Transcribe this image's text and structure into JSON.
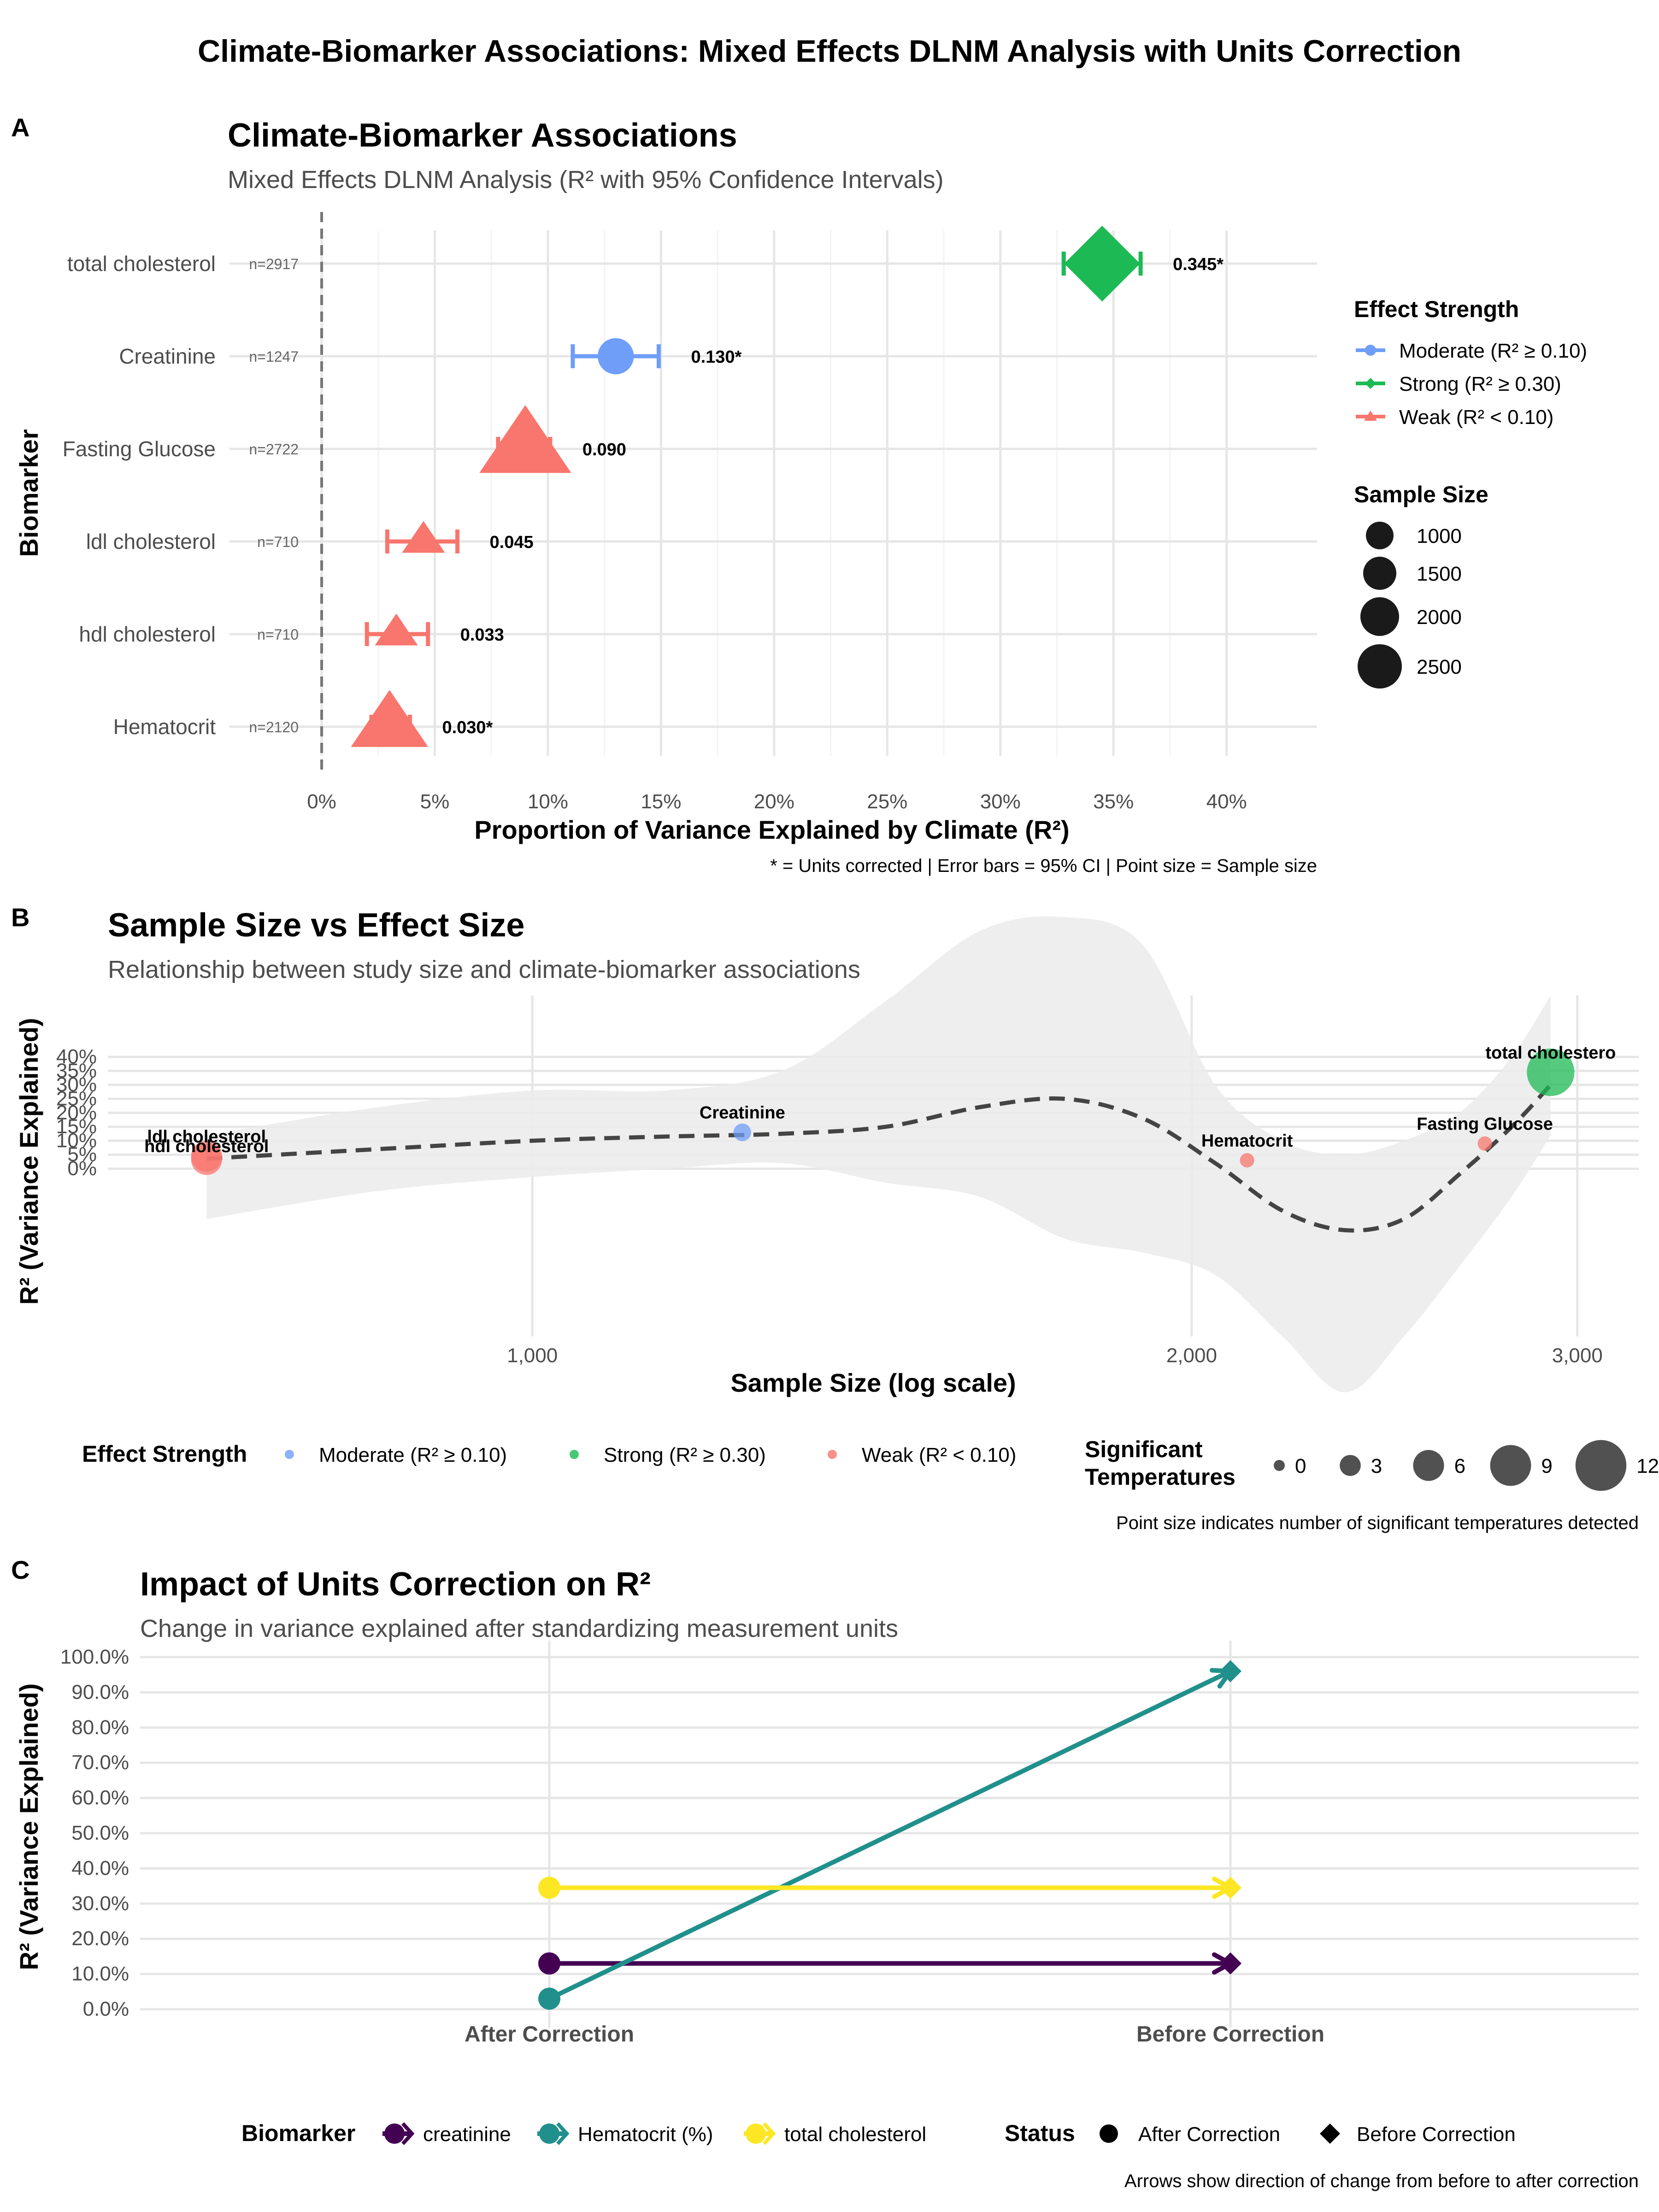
{
  "main_title": "Climate-Biomarker Associations: Mixed Effects DLNM Analysis with Units Correction",
  "colors": {
    "moderate": "#6f9ef8",
    "strong": "#1db954",
    "weak": "#f8766d",
    "creatinine": "#440154",
    "hematocrit": "#21908c",
    "total_cholesterol": "#fde725",
    "grid": "#e6e6e6",
    "ribbon": "#ebebeb",
    "text": "#000000",
    "muted": "#4d4d4d"
  },
  "panels": {
    "A": {
      "letter": "A"
    },
    "B": {
      "letter": "B"
    },
    "C": {
      "letter": "C"
    }
  },
  "chart_data": [
    {
      "type": "scatter",
      "title": "Climate-Biomarker Associations",
      "subtitle": "Mixed Effects DLNM Analysis (R² with 95% Confidence Intervals)",
      "xlabel": "Proportion of Variance Explained by Climate (R²)",
      "ylabel": "Biomarker",
      "caption": "* = Units corrected | Error bars = 95% CI | Point size = Sample size",
      "xlim": [
        0,
        0.44
      ],
      "x_ticks": [
        0,
        0.05,
        0.1,
        0.15,
        0.2,
        0.25,
        0.3,
        0.35,
        0.4
      ],
      "x_tick_labels": [
        "0%",
        "5%",
        "10%",
        "15%",
        "20%",
        "25%",
        "30%",
        "35%",
        "40%"
      ],
      "grid": true,
      "reference_line_x": 0,
      "legend_position": "right",
      "legend_strength_title": "Effect Strength",
      "legend_strength_items": [
        {
          "label": "Moderate (R² ≥ 0.10)",
          "key": "moderate",
          "shape": "circle"
        },
        {
          "label": "Strong (R² ≥ 0.30)",
          "key": "strong",
          "shape": "diamond"
        },
        {
          "label": "Weak (R² < 0.10)",
          "key": "weak",
          "shape": "triangle"
        }
      ],
      "legend_size_title": "Sample Size",
      "legend_size_items": [
        {
          "label": "1000",
          "n": 1000
        },
        {
          "label": "1500",
          "n": 1500
        },
        {
          "label": "2000",
          "n": 2000
        },
        {
          "label": "2500",
          "n": 2500
        }
      ],
      "rows": [
        {
          "name": "total cholesterol",
          "n_label": "n=2917",
          "n": 2917,
          "r2": 0.345,
          "ci": [
            0.328,
            0.362
          ],
          "label": "0.345*",
          "strength": "strong",
          "shape": "diamond"
        },
        {
          "name": "Creatinine",
          "n_label": "n=1247",
          "n": 1247,
          "r2": 0.13,
          "ci": [
            0.111,
            0.149
          ],
          "label": "0.130*",
          "strength": "moderate",
          "shape": "circle"
        },
        {
          "name": "Fasting Glucose",
          "n_label": "n=2722",
          "n": 2722,
          "r2": 0.09,
          "ci": [
            0.078,
            0.101
          ],
          "label": "0.090",
          "strength": "weak",
          "shape": "triangle"
        },
        {
          "name": "ldl cholesterol",
          "n_label": "n=710",
          "n": 710,
          "r2": 0.045,
          "ci": [
            0.029,
            0.06
          ],
          "label": "0.045",
          "strength": "weak",
          "shape": "triangle"
        },
        {
          "name": "hdl cholesterol",
          "n_label": "n=710",
          "n": 710,
          "r2": 0.033,
          "ci": [
            0.02,
            0.047
          ],
          "label": "0.033",
          "strength": "weak",
          "shape": "triangle"
        },
        {
          "name": "Hematocrit",
          "n_label": "n=2120",
          "n": 2120,
          "r2": 0.03,
          "ci": [
            0.022,
            0.039
          ],
          "label": "0.030*",
          "strength": "weak",
          "shape": "triangle"
        }
      ]
    },
    {
      "type": "scatter",
      "title": "Sample Size vs Effect Size",
      "subtitle": "Relationship between study size and climate-biomarker associations",
      "xlabel": "Sample Size (log scale)",
      "ylabel": "R² (Variance Explained)",
      "caption": "Point size indicates number of significant temperatures detected",
      "x_scale": "log",
      "xlim": [
        640,
        3200
      ],
      "x_ticks": [
        1000,
        2000,
        3000
      ],
      "x_tick_labels": [
        "1,000",
        "2,000",
        "3,000"
      ],
      "ylim": [
        -0.6,
        0.62
      ],
      "y_ticks": [
        0,
        0.05,
        0.1,
        0.15,
        0.2,
        0.25,
        0.3,
        0.35,
        0.4
      ],
      "y_tick_labels": [
        "0%",
        "5%",
        "10%",
        "15%",
        "20%",
        "25%",
        "30%",
        "35%",
        "40%"
      ],
      "grid": true,
      "legend_position": "bottom",
      "legend_strength_title": "Effect Strength",
      "legend_strength_items": [
        {
          "label": "Moderate (R² ≥ 0.10)",
          "key": "moderate"
        },
        {
          "label": "Strong (R² ≥ 0.30)",
          "key": "strong"
        },
        {
          "label": "Weak (R² < 0.10)",
          "key": "weak"
        }
      ],
      "legend_size_title": [
        "Significant",
        "Temperatures"
      ],
      "legend_size_items": [
        {
          "label": "0",
          "v": 0
        },
        {
          "label": "3",
          "v": 3
        },
        {
          "label": "6",
          "v": 6
        },
        {
          "label": "9",
          "v": 9
        },
        {
          "label": "12",
          "v": 12
        }
      ],
      "points": [
        {
          "name": "hdl cholesterol",
          "n": 710,
          "r2": 0.033,
          "strength": "weak",
          "sig": 6,
          "label_dy": -16
        },
        {
          "name": "ldl cholesterol",
          "n": 710,
          "r2": 0.045,
          "strength": "weak",
          "sig": 6,
          "label_dy": -30
        },
        {
          "name": "Creatinine",
          "n": 1247,
          "r2": 0.13,
          "strength": "moderate",
          "sig": 2,
          "label_dy": -30
        },
        {
          "name": "Hematocrit",
          "n": 2120,
          "r2": 0.03,
          "strength": "weak",
          "sig": 1,
          "label_dy": -30
        },
        {
          "name": "Fasting Glucose",
          "n": 2722,
          "r2": 0.09,
          "strength": "weak",
          "sig": 1,
          "label_dy": -30
        },
        {
          "name": "total cholestero",
          "n": 2917,
          "r2": 0.345,
          "strength": "strong",
          "sig": 11,
          "label_dy": -30
        }
      ],
      "smooth": [
        {
          "n": 710,
          "y": 0.036,
          "lo": -0.18,
          "hi": 0.12
        },
        {
          "n": 850,
          "y": 0.07,
          "lo": -0.08,
          "hi": 0.22
        },
        {
          "n": 1000,
          "y": 0.1,
          "lo": -0.03,
          "hi": 0.28
        },
        {
          "n": 1150,
          "y": 0.115,
          "lo": 0.0,
          "hi": 0.28
        },
        {
          "n": 1300,
          "y": 0.125,
          "lo": 0.02,
          "hi": 0.35
        },
        {
          "n": 1450,
          "y": 0.15,
          "lo": -0.05,
          "hi": 0.6
        },
        {
          "n": 1600,
          "y": 0.22,
          "lo": -0.1,
          "hi": 0.85
        },
        {
          "n": 1750,
          "y": 0.25,
          "lo": -0.25,
          "hi": 0.9
        },
        {
          "n": 1900,
          "y": 0.18,
          "lo": -0.3,
          "hi": 0.8
        },
        {
          "n": 2050,
          "y": 0.02,
          "lo": -0.38,
          "hi": 0.3
        },
        {
          "n": 2200,
          "y": -0.15,
          "lo": -0.6,
          "hi": 0.1
        },
        {
          "n": 2350,
          "y": -0.22,
          "lo": -0.8,
          "hi": 0.05
        },
        {
          "n": 2500,
          "y": -0.18,
          "lo": -0.6,
          "hi": 0.1
        },
        {
          "n": 2650,
          "y": -0.02,
          "lo": -0.35,
          "hi": 0.2
        },
        {
          "n": 2800,
          "y": 0.15,
          "lo": -0.1,
          "hi": 0.4
        },
        {
          "n": 2917,
          "y": 0.3,
          "lo": 0.12,
          "hi": 0.62
        }
      ]
    },
    {
      "type": "line",
      "title": "Impact of Units Correction on R²",
      "subtitle": "Change in variance explained after standardizing measurement units",
      "xlabel": "",
      "ylabel": "R² (Variance Explained)",
      "caption": "Arrows show direction of change from before to after correction",
      "categories": [
        "After Correction",
        "Before Correction"
      ],
      "ylim": [
        0,
        1.0
      ],
      "y_ticks": [
        0,
        0.1,
        0.2,
        0.3,
        0.4,
        0.5,
        0.6,
        0.7,
        0.8,
        0.9,
        1.0
      ],
      "y_tick_labels": [
        "0.0%",
        "10.0%",
        "20.0%",
        "30.0%",
        "40.0%",
        "50.0%",
        "60.0%",
        "70.0%",
        "80.0%",
        "90.0%",
        "100.0%"
      ],
      "grid": true,
      "legend_position": "bottom",
      "legend_biomarker_title": "Biomarker",
      "legend_status_title": "Status",
      "legend_status_items": [
        {
          "label": "After Correction",
          "shape": "circle"
        },
        {
          "label": "Before Correction",
          "shape": "diamond"
        }
      ],
      "series": [
        {
          "name": "creatinine",
          "key": "creatinine",
          "values": [
            0.13,
            0.13
          ]
        },
        {
          "name": "Hematocrit (%)",
          "key": "hematocrit",
          "values": [
            0.03,
            0.96
          ]
        },
        {
          "name": "total cholesterol",
          "key": "total_cholesterol",
          "values": [
            0.345,
            0.345
          ]
        }
      ]
    }
  ]
}
